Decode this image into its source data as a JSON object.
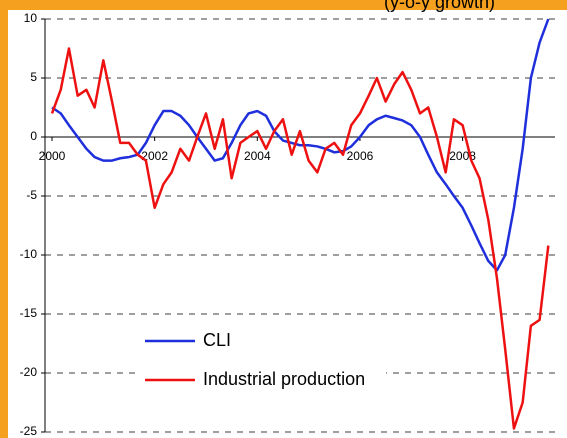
{
  "chart_data": {
    "type": "line",
    "subtitle": "(y-o-y growth)",
    "x": [
      2000,
      2000.17,
      2000.33,
      2000.5,
      2000.67,
      2000.83,
      2001,
      2001.17,
      2001.33,
      2001.5,
      2001.67,
      2001.83,
      2002,
      2002.17,
      2002.33,
      2002.5,
      2002.67,
      2002.83,
      2003,
      2003.17,
      2003.33,
      2003.5,
      2003.67,
      2003.83,
      2004,
      2004.17,
      2004.33,
      2004.5,
      2004.67,
      2004.83,
      2005,
      2005.17,
      2005.33,
      2005.5,
      2005.67,
      2005.83,
      2006,
      2006.17,
      2006.33,
      2006.5,
      2006.67,
      2006.83,
      2007,
      2007.17,
      2007.33,
      2007.5,
      2007.67,
      2007.83,
      2008,
      2008.17,
      2008.33,
      2008.5,
      2008.67,
      2008.83,
      2009,
      2009.17,
      2009.33,
      2009.5,
      2009.67
    ],
    "series": [
      {
        "name": "CLI",
        "color": "#1f2fdc",
        "values": [
          2.5,
          2,
          1,
          0,
          -1,
          -1.7,
          -2,
          -2,
          -1.8,
          -1.7,
          -1.5,
          -0.5,
          1,
          2.2,
          2.2,
          1.8,
          1,
          0,
          -1,
          -2,
          -1.8,
          -0.5,
          1,
          2,
          2.2,
          1.8,
          0.5,
          -0.3,
          -0.5,
          -0.7,
          -0.7,
          -0.8,
          -1,
          -1.3,
          -1.2,
          -0.8,
          0,
          1,
          1.5,
          1.8,
          1.6,
          1.4,
          1,
          0,
          -1.5,
          -3,
          -4,
          -5,
          -6,
          -7.5,
          -9,
          -10.5,
          -11.3,
          -10,
          -6,
          -1,
          5,
          8,
          10
        ]
      },
      {
        "name": "Industrial production",
        "color": "#ee1111",
        "values": [
          2,
          4,
          7.5,
          3.5,
          4,
          2.5,
          6.5,
          3,
          -0.5,
          -0.5,
          -1.5,
          -2,
          -6,
          -4,
          -3,
          -1,
          -2,
          0,
          2,
          -1,
          1.5,
          -3.5,
          -0.5,
          0,
          0.5,
          -1,
          0.5,
          1.5,
          -1.5,
          0.5,
          -2,
          -3,
          -1,
          -0.5,
          -1.5,
          1,
          2,
          3.5,
          5,
          3,
          4.5,
          5.5,
          4,
          2,
          2.5,
          0,
          -3,
          1.5,
          1,
          -2,
          -3.5,
          -7,
          -12,
          -18,
          -24.7,
          -22.5,
          -16,
          -15.5,
          -9.2
        ]
      }
    ],
    "xlim": [
      2000,
      2009.8
    ],
    "xticks": [
      2000,
      2002,
      2004,
      2006,
      2008
    ],
    "ylim": [
      -25,
      10
    ],
    "yticks": [
      -25,
      -20,
      -15,
      -10,
      -5,
      0,
      5,
      10
    ],
    "grid": true,
    "legend": "lower left"
  }
}
